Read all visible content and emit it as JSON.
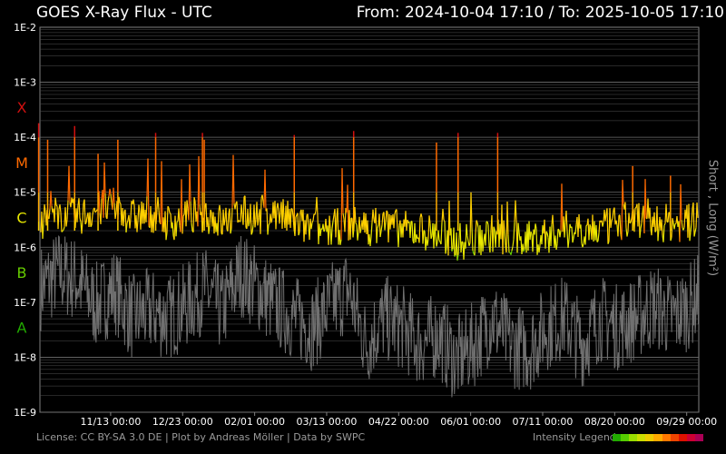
{
  "header": {
    "title": "GOES X-Ray Flux - UTC",
    "from_label": "From:",
    "from_value": "2024-10-04 17:10",
    "separator": "/",
    "to_label": "To:",
    "to_value": "2025-10-05 17:10"
  },
  "footer": {
    "license": "License: CC BY-SA 3.0 DE | Plot by Andreas Möller | Data by SWPC",
    "legend_label": "Intensity Legend",
    "legend_colors": [
      "#22aa00",
      "#55cc00",
      "#99dd00",
      "#ccdd00",
      "#eecc00",
      "#ffaa00",
      "#ff7700",
      "#ee4400",
      "#dd1100",
      "#cc0033",
      "#aa0055"
    ]
  },
  "colors": {
    "background": "#000000",
    "grid": "#505050",
    "short_series": "#707070",
    "class_X": "#d01010",
    "class_M": "#ff6a00",
    "class_C": "#e8e800",
    "class_B": "#66cc00",
    "class_A": "#22aa00"
  },
  "chart_data": {
    "type": "line",
    "title": "GOES X-Ray Flux - UTC",
    "ylabel": "Short , Long (W/m²)",
    "y_scale": "log",
    "ylim": [
      1e-09,
      0.01
    ],
    "y_ticks": [
      "1E-2",
      "1E-3",
      "1E-4",
      "1E-5",
      "1E-6",
      "1E-7",
      "1E-8",
      "1E-9"
    ],
    "x_ticks": [
      "11/13 00:00",
      "12/23 00:00",
      "02/01 00:00",
      "03/13 00:00",
      "04/22 00:00",
      "06/01 00:00",
      "07/11 00:00",
      "08/20 00:00",
      "09/29 00:00"
    ],
    "flare_classes": [
      "X",
      "M",
      "C",
      "B",
      "A"
    ],
    "grid": true,
    "series": [
      {
        "name": "Long",
        "x": [
          "2024-10-04",
          "2024-10-15",
          "2024-10-25",
          "2024-11-05",
          "2024-11-15",
          "2024-11-25",
          "2024-12-05",
          "2024-12-15",
          "2024-12-25",
          "2025-01-04",
          "2025-01-14",
          "2025-01-24",
          "2025-02-03",
          "2025-02-13",
          "2025-02-23",
          "2025-03-05",
          "2025-03-15",
          "2025-03-25",
          "2025-04-04",
          "2025-04-14",
          "2025-04-24",
          "2025-05-04",
          "2025-05-14",
          "2025-05-24",
          "2025-06-03",
          "2025-06-13",
          "2025-06-23",
          "2025-07-03",
          "2025-07-13",
          "2025-07-23",
          "2025-08-02",
          "2025-08-12",
          "2025-08-22",
          "2025-09-01",
          "2025-09-11",
          "2025-09-21",
          "2025-10-01",
          "2025-10-05"
        ],
        "y": [
          2e-06,
          3e-06,
          2.5e-06,
          3.5e-06,
          4e-06,
          2.5e-06,
          3e-06,
          2e-06,
          2.5e-06,
          3e-06,
          2e-06,
          3e-06,
          2.5e-06,
          3e-06,
          2e-06,
          1.5e-06,
          1.5e-06,
          2e-06,
          1.6e-06,
          2e-06,
          1.5e-06,
          1.5e-06,
          1.2e-06,
          9e-07,
          1e-06,
          1.3e-06,
          1e-06,
          1e-06,
          1.2e-06,
          1.5e-06,
          1.6e-06,
          1.5e-06,
          2e-06,
          2.5e-06,
          2e-06,
          2e-06,
          2e-06,
          2.5e-06
        ],
        "peaks": [
          {
            "date": "2024-10-04",
            "flux": 0.00018
          },
          {
            "date": "2024-10-09",
            "flux": 9e-05
          },
          {
            "date": "2024-10-24",
            "flux": 0.00016
          },
          {
            "date": "2024-11-06",
            "flux": 5e-05
          },
          {
            "date": "2024-11-17",
            "flux": 9e-05
          },
          {
            "date": "2024-12-08",
            "flux": 0.00012
          },
          {
            "date": "2025-01-03",
            "flux": 0.00012
          },
          {
            "date": "2025-01-04",
            "flux": 9e-05
          },
          {
            "date": "2025-02-23",
            "flux": 0.00011
          },
          {
            "date": "2025-03-28",
            "flux": 0.00013
          },
          {
            "date": "2025-05-13",
            "flux": 8e-05
          },
          {
            "date": "2025-05-25",
            "flux": 0.00012
          },
          {
            "date": "2025-06-16",
            "flux": 0.00012
          },
          {
            "date": "2025-08-30",
            "flux": 3e-05
          },
          {
            "date": "2025-09-20",
            "flux": 2e-05
          }
        ]
      },
      {
        "name": "Short",
        "x": [
          "2024-10-04",
          "2024-10-15",
          "2024-10-25",
          "2024-11-05",
          "2024-11-15",
          "2024-11-25",
          "2024-12-05",
          "2024-12-15",
          "2024-12-25",
          "2025-01-04",
          "2025-01-14",
          "2025-01-24",
          "2025-02-03",
          "2025-02-13",
          "2025-02-23",
          "2025-03-05",
          "2025-03-15",
          "2025-03-25",
          "2025-04-04",
          "2025-04-14",
          "2025-04-24",
          "2025-05-04",
          "2025-05-14",
          "2025-05-24",
          "2025-06-03",
          "2025-06-13",
          "2025-06-23",
          "2025-07-03",
          "2025-07-13",
          "2025-07-23",
          "2025-08-02",
          "2025-08-12",
          "2025-08-22",
          "2025-09-01",
          "2025-09-11",
          "2025-09-21",
          "2025-10-01",
          "2025-10-05"
        ],
        "y": [
          1e-07,
          2e-07,
          1.5e-07,
          5e-08,
          1e-07,
          3e-08,
          4e-08,
          3e-08,
          5e-08,
          1e-07,
          4e-08,
          2e-07,
          1e-07,
          5e-08,
          3e-08,
          2e-08,
          5e-08,
          1e-07,
          1e-08,
          3e-08,
          2e-08,
          1e-08,
          1.5e-08,
          5e-09,
          1e-08,
          3e-08,
          1e-08,
          8e-09,
          2e-08,
          3e-08,
          1e-08,
          3e-08,
          2e-08,
          3e-08,
          5e-08,
          3e-08,
          5e-08,
          8e-08
        ]
      }
    ]
  }
}
